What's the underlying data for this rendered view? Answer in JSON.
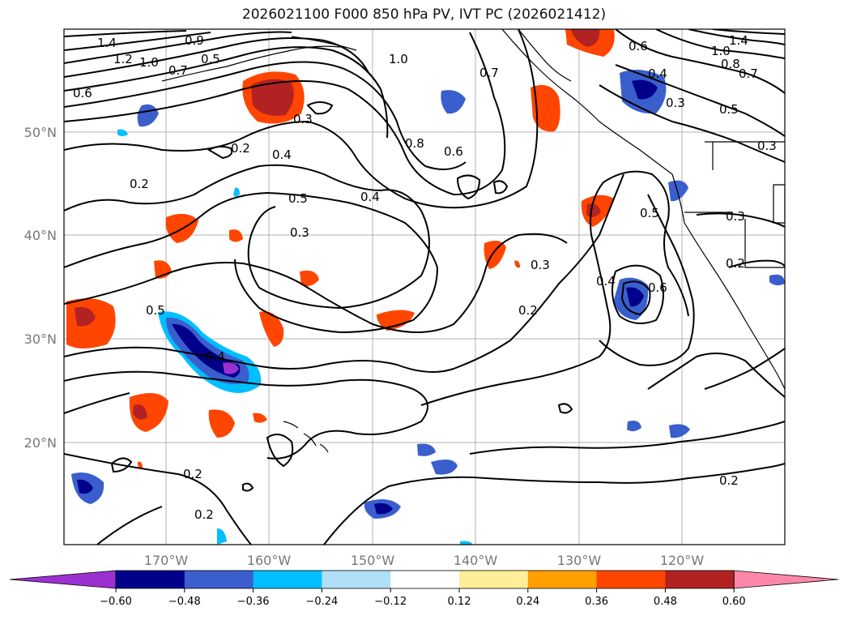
{
  "title": "2026021100 F000 850 hPa PV, IVT PC (2026021412)",
  "lat_labels": [
    "50°N",
    "40°N",
    "30°N",
    "20°N"
  ],
  "lon_labels": [
    "170°W",
    "160°W",
    "150°W",
    "140°W",
    "130°W",
    "120°W"
  ],
  "colorbar": {
    "colors": [
      "#9b30d0",
      "#00008b",
      "#3a5fcd",
      "#00bfff",
      "#b0e0f8",
      "#ffffff",
      "#ffee99",
      "#ffa000",
      "#ff4500",
      "#b22222",
      "#ff88aa"
    ],
    "ticks": [
      "−0.60",
      "−0.48",
      "−0.36",
      "−0.24",
      "−0.12",
      "0.12",
      "0.24",
      "0.36",
      "0.48",
      "0.60"
    ]
  },
  "contour_labels": [
    "1.4",
    "1.2",
    "1.0",
    "0.9",
    "0.7",
    "0.5",
    "0.6",
    "0.3",
    "0.2",
    "0.4",
    "0.5",
    "0.4",
    "0.3",
    "0.2",
    "1.0",
    "0.8",
    "0.6",
    "0.7",
    "0.6",
    "0.4",
    "0.3",
    "1.4",
    "1.0",
    "0.8",
    "0.7",
    "0.5",
    "0.3",
    "0.3",
    "0.2",
    "0.5",
    "0.6",
    "0.4",
    "0.3",
    "0.2",
    "0.5",
    "0.4",
    "0.2",
    "0.2",
    "0.2"
  ],
  "chart_data": {
    "type": "map-contour-filled",
    "title": "2026021100 F000 850 hPa PV, IVT PC (2026021412)",
    "lat_ticks": [
      "50°N",
      "40°N",
      "30°N",
      "20°N"
    ],
    "lon_ticks": [
      "170°W",
      "160°W",
      "150°W",
      "140°W",
      "130°W",
      "120°W"
    ],
    "colorbar_ticks": [
      -0.6,
      -0.48,
      -0.36,
      -0.24,
      -0.12,
      0.12,
      0.24,
      0.36,
      0.48,
      0.6
    ],
    "contour_levels": [
      0.2,
      0.3,
      0.4,
      0.5,
      0.6,
      0.7,
      0.8,
      0.9,
      1.0,
      1.2,
      1.4
    ]
  }
}
